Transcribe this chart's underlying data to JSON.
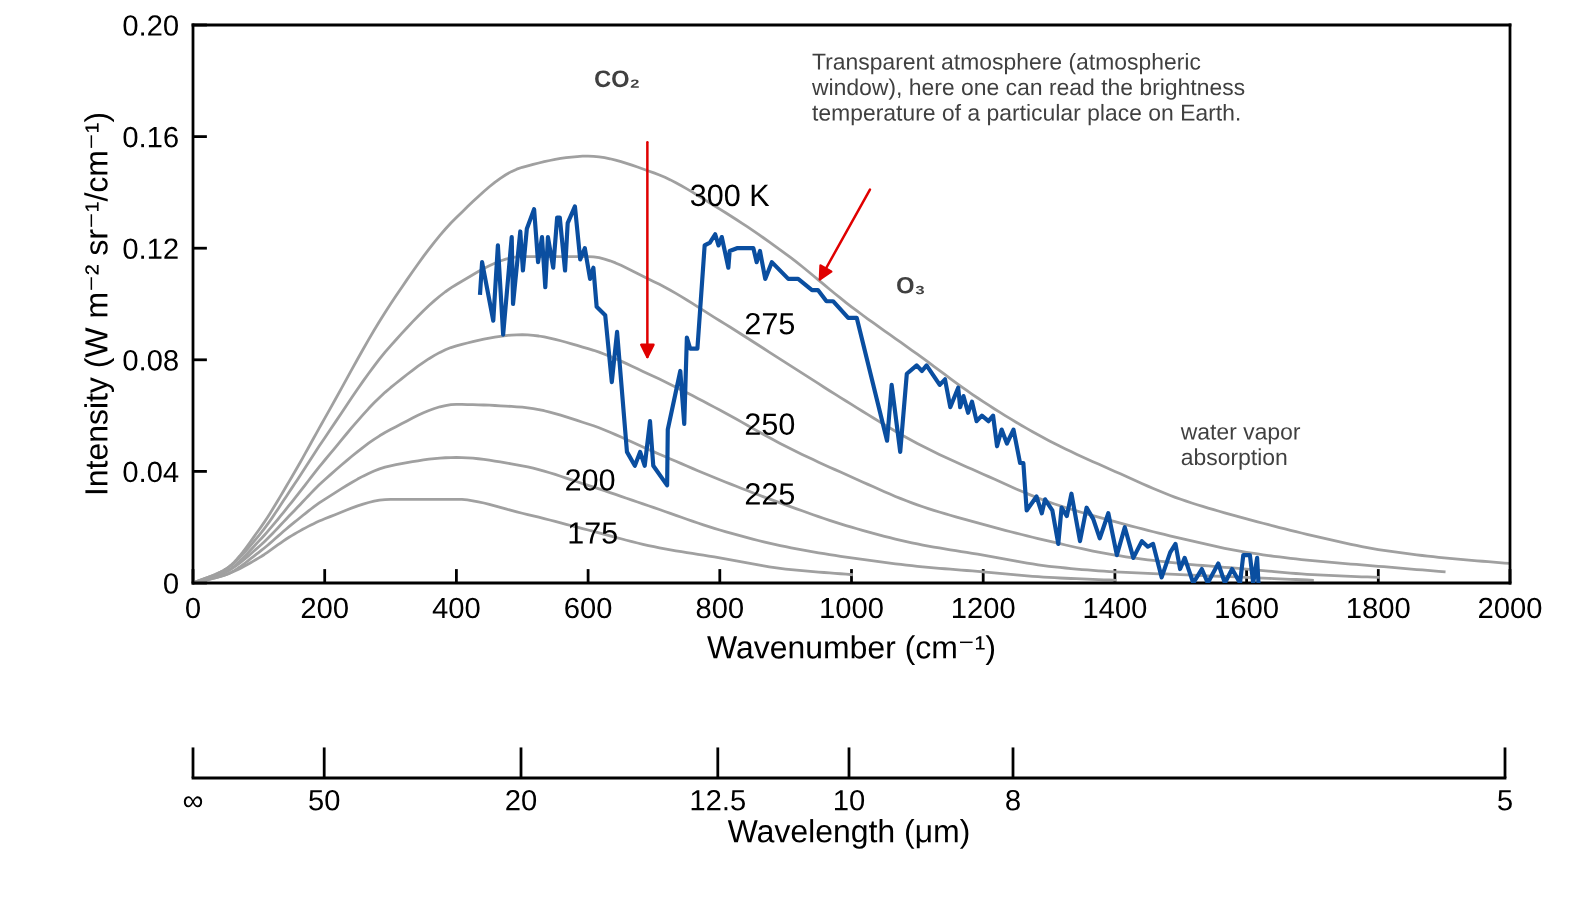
{
  "chart_data": {
    "type": "line",
    "xlabel": "Wavenumber (cm⁻¹)",
    "ylabel": "Intensity (W m⁻² sr⁻¹/cm⁻¹)",
    "x2label": "Wavelength (μm)",
    "xlim": [
      0,
      2000
    ],
    "xticks": [
      0,
      200,
      400,
      600,
      800,
      1000,
      1200,
      1400,
      1600,
      1800,
      2000
    ],
    "ylim": [
      0,
      0.2
    ],
    "yticks": [
      0,
      0.04,
      0.08,
      0.12,
      0.16,
      {
        "value": 0.2,
        "label": "0.20"
      }
    ],
    "grid": false,
    "marker": "none",
    "line_style": "solid",
    "series": [
      {
        "name": "300 K",
        "color": "#a0a0a0",
        "x": [
          0,
          50,
          100,
          150,
          200,
          300,
          400,
          500,
          600,
          700,
          800,
          900,
          1000,
          1100,
          1200,
          1300,
          1400,
          1500,
          1600,
          1700,
          1800,
          1900,
          2000
        ],
        "values": [
          0,
          0.005,
          0.019,
          0.038,
          0.059,
          0.1,
          0.131,
          0.149,
          0.153,
          0.147,
          0.134,
          0.118,
          0.099,
          0.082,
          0.065,
          0.051,
          0.04,
          0.03,
          0.023,
          0.017,
          0.012,
          0.009,
          0.007
        ]
      },
      {
        "name": "275",
        "color": "#a0a0a0",
        "x": [
          0,
          50,
          100,
          150,
          200,
          300,
          400,
          500,
          600,
          700,
          800,
          900,
          1000,
          1100,
          1200,
          1300,
          1400,
          1500,
          1600,
          1700,
          1800,
          1900
        ],
        "values": [
          0,
          0.005,
          0.017,
          0.034,
          0.052,
          0.085,
          0.107,
          0.117,
          0.117,
          0.108,
          0.094,
          0.079,
          0.064,
          0.05,
          0.039,
          0.029,
          0.022,
          0.016,
          0.011,
          0.008,
          0.006,
          0.004
        ]
      },
      {
        "name": "250",
        "color": "#a0a0a0",
        "x": [
          0,
          50,
          100,
          150,
          200,
          300,
          400,
          500,
          600,
          700,
          800,
          900,
          1000,
          1100,
          1200,
          1300,
          1400,
          1500,
          1600,
          1700,
          1800
        ],
        "values": [
          0,
          0.004,
          0.015,
          0.029,
          0.044,
          0.07,
          0.085,
          0.089,
          0.084,
          0.074,
          0.062,
          0.049,
          0.038,
          0.028,
          0.021,
          0.015,
          0.01,
          0.007,
          0.005,
          0.003,
          0.002
        ]
      },
      {
        "name": "225",
        "color": "#a0a0a0",
        "x": [
          0,
          50,
          100,
          150,
          200,
          300,
          400,
          500,
          600,
          700,
          800,
          900,
          1000,
          1100,
          1200,
          1300,
          1400,
          1500,
          1600,
          1700
        ],
        "values": [
          0,
          0.004,
          0.013,
          0.025,
          0.037,
          0.055,
          0.064,
          0.063,
          0.057,
          0.047,
          0.037,
          0.028,
          0.02,
          0.014,
          0.01,
          0.006,
          0.004,
          0.003,
          0.002,
          0.001
        ]
      },
      {
        "name": "200",
        "color": "#a0a0a0",
        "x": [
          0,
          50,
          100,
          150,
          200,
          300,
          400,
          500,
          600,
          700,
          800,
          900,
          1000,
          1100,
          1200,
          1300,
          1400
        ],
        "values": [
          0,
          0.003,
          0.011,
          0.021,
          0.03,
          0.042,
          0.045,
          0.042,
          0.035,
          0.027,
          0.019,
          0.013,
          0.009,
          0.006,
          0.004,
          0.002,
          0.001
        ]
      },
      {
        "name": "175",
        "color": "#a0a0a0",
        "x": [
          0,
          50,
          100,
          150,
          200,
          300,
          400,
          500,
          600,
          700,
          800,
          900,
          1000
        ],
        "values": [
          0,
          0.003,
          0.009,
          0.017,
          0.023,
          0.03,
          0.03,
          0.025,
          0.019,
          0.013,
          0.009,
          0.005,
          0.003
        ]
      },
      {
        "color": "#0a4ea0",
        "x": [
          436,
          439,
          456,
          463,
          471,
          484,
          486,
          497,
          501,
          507,
          518,
          524,
          530,
          535,
          539,
          547,
          553,
          557,
          565,
          569,
          580,
          588,
          595,
          603,
          608,
          613,
          626,
          636,
          644,
          659,
          671,
          679,
          686,
          694,
          699,
          720,
          721,
          740,
          746,
          750,
          755,
          766,
          777,
          785,
          793,
          798,
          803,
          813,
          815,
          826,
          851,
          856,
          861,
          869,
          879,
          904,
          919,
          940,
          949,
          962,
          972,
          995,
          1008,
          1054,
          1061,
          1074,
          1084,
          1099,
          1107,
          1114,
          1134,
          1142,
          1150,
          1162,
          1165,
          1170,
          1177,
          1183,
          1190,
          1198,
          1208,
          1215,
          1221,
          1228,
          1236,
          1246,
          1256,
          1261,
          1266,
          1281,
          1289,
          1294,
          1305,
          1314,
          1319,
          1327,
          1334,
          1347,
          1357,
          1367,
          1377,
          1390,
          1403,
          1415,
          1428,
          1441,
          1450,
          1458,
          1471,
          1484,
          1492,
          1499,
          1506,
          1519,
          1532,
          1541,
          1557,
          1567,
          1578,
          1590,
          1595,
          1605,
          1610,
          1616,
          1618
        ],
        "values": [
          0.104,
          0.115,
          0.094,
          0.121,
          0.089,
          0.124,
          0.1,
          0.126,
          0.112,
          0.127,
          0.134,
          0.115,
          0.124,
          0.106,
          0.124,
          0.113,
          0.131,
          0.131,
          0.112,
          0.129,
          0.135,
          0.116,
          0.12,
          0.109,
          0.113,
          0.099,
          0.096,
          0.072,
          0.09,
          0.047,
          0.042,
          0.047,
          0.042,
          0.058,
          0.042,
          0.035,
          0.055,
          0.076,
          0.057,
          0.088,
          0.084,
          0.084,
          0.121,
          0.122,
          0.125,
          0.121,
          0.124,
          0.113,
          0.119,
          0.12,
          0.12,
          0.115,
          0.119,
          0.109,
          0.115,
          0.109,
          0.109,
          0.105,
          0.105,
          0.101,
          0.101,
          0.095,
          0.095,
          0.051,
          0.071,
          0.047,
          0.075,
          0.078,
          0.076,
          0.078,
          0.071,
          0.073,
          0.063,
          0.07,
          0.063,
          0.067,
          0.061,
          0.065,
          0.058,
          0.06,
          0.058,
          0.06,
          0.049,
          0.055,
          0.05,
          0.055,
          0.043,
          0.043,
          0.026,
          0.031,
          0.025,
          0.03,
          0.026,
          0.014,
          0.027,
          0.024,
          0.032,
          0.015,
          0.027,
          0.023,
          0.016,
          0.025,
          0.01,
          0.02,
          0.009,
          0.015,
          0.013,
          0.014,
          0.002,
          0.011,
          0.014,
          0.005,
          0.009,
          0,
          0.005,
          0,
          0.007,
          0,
          0.005,
          0,
          0.01,
          0.01,
          0,
          0.009,
          0
        ]
      }
    ],
    "annotations": [
      "CO₂",
      "Transparent atmosphere (atmospheric\nwindow), here one can read the brightness\ntemperature of a particular place on Earth.",
      "O₃",
      "water vapor\nabsorption",
      "∞",
      "50",
      "20",
      "12.5",
      "10",
      "8",
      "5"
    ]
  }
}
